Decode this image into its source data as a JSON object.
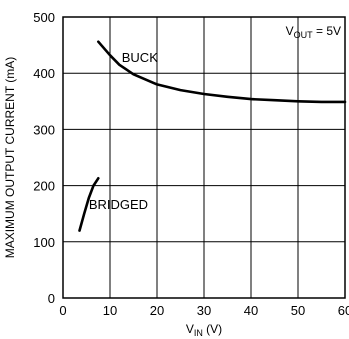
{
  "chart_data": {
    "type": "line",
    "title": "",
    "xlabel": "V",
    "xlabel_subscript": "IN",
    "xlabel_unit": " (V)",
    "ylabel": "MAXIMUM OUTPUT CURRENT (mA)",
    "xlim": [
      0,
      60
    ],
    "ylim": [
      0,
      500
    ],
    "x_ticks": [
      0,
      10,
      20,
      30,
      40,
      50,
      60
    ],
    "x_tick_labels": [
      "0",
      "10",
      "20",
      "30",
      "40",
      "50",
      "60"
    ],
    "y_ticks": [
      0,
      100,
      200,
      300,
      400,
      500
    ],
    "y_tick_labels": [
      "0",
      "100",
      "200",
      "300",
      "400",
      "500"
    ],
    "grid": true,
    "annotation": {
      "prefix": "V",
      "subscript": "OUT",
      "suffix": " = 5V",
      "position": "top-right"
    },
    "series": [
      {
        "name": "BUCK",
        "x": [
          7.5,
          10,
          12,
          15,
          20,
          25,
          30,
          35,
          40,
          45,
          50,
          55,
          60
        ],
        "y": [
          456,
          432,
          415,
          398,
          380,
          370,
          363,
          358,
          354,
          352,
          350,
          349,
          349
        ]
      },
      {
        "name": "BRIDGED",
        "x": [
          3.5,
          4.5,
          5.5,
          6.5,
          7.5
        ],
        "y": [
          120,
          150,
          178,
          200,
          213
        ]
      }
    ],
    "label_anchors": {
      "BUCK": [
        12.5,
        420
      ],
      "BRIDGED": [
        5.5,
        158
      ]
    },
    "colors": {
      "line": "#000000",
      "grid": "#000000",
      "background": "#ffffff"
    }
  }
}
